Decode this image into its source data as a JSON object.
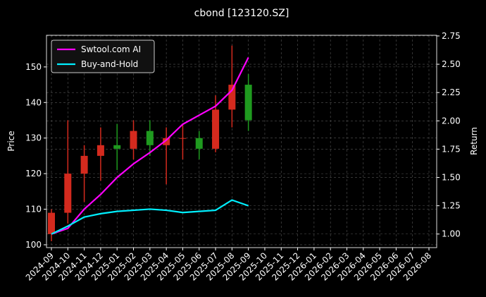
{
  "chart_data": {
    "type": "candlestick",
    "title": "cbond [123120.SZ]",
    "y_label": "Price",
    "y2_label": "Return",
    "xticks": [
      "2024-09",
      "2024-10",
      "2024-11",
      "2024-12",
      "2025-01",
      "2025-02",
      "2025-03",
      "2025-04",
      "2025-05",
      "2025-06",
      "2025-07",
      "2025-08",
      "2025-09",
      "2025-10",
      "2025-11",
      "2025-12",
      "2026-01",
      "2026-02",
      "2026-03",
      "2026-04",
      "2026-05",
      "2026-06",
      "2026-07",
      "2026-08"
    ],
    "x": [
      "2024-09",
      "2024-10",
      "2024-11",
      "2024-12",
      "2025-01",
      "2025-02",
      "2025-03",
      "2025-04",
      "2025-05",
      "2025-06",
      "2025-07",
      "2025-08",
      "2025-09"
    ],
    "open": [
      103,
      109,
      120,
      125,
      128,
      127,
      132,
      128,
      130,
      130,
      127,
      138,
      145
    ],
    "high": [
      110,
      135,
      128,
      133,
      134,
      135,
      135,
      133,
      134,
      132,
      142,
      156,
      148
    ],
    "low": [
      101,
      106,
      112,
      118,
      121,
      124,
      125,
      117,
      124,
      124,
      126,
      133,
      132
    ],
    "close": [
      109,
      120,
      125,
      128,
      127,
      132,
      128,
      130,
      130,
      127,
      138,
      145,
      135
    ],
    "up_color": "#d42a1e",
    "down_color": "#1f9a1f",
    "ylim": [
      99.2,
      158.9
    ],
    "yticks": [
      100,
      110,
      120,
      130,
      140,
      150
    ],
    "y2lim": [
      0.88,
      2.756
    ],
    "y2ticks": [
      {
        "value": 1.0,
        "label": "1.00"
      },
      {
        "value": 1.25,
        "label": "1.25"
      },
      {
        "value": 1.5,
        "label": "1.50"
      },
      {
        "value": 1.75,
        "label": "1.75"
      },
      {
        "value": 2.0,
        "label": "2.00"
      },
      {
        "value": 2.25,
        "label": "2.25"
      },
      {
        "value": 2.5,
        "label": "2.50"
      },
      {
        "value": 2.75,
        "label": "2.75"
      }
    ],
    "series": [
      {
        "name": "Swtool.com AI",
        "color": "#ff00ff",
        "axis": "y2",
        "values": [
          1.0,
          1.05,
          1.22,
          1.35,
          1.5,
          1.62,
          1.72,
          1.83,
          1.97,
          2.05,
          2.13,
          2.27,
          2.56
        ]
      },
      {
        "name": "Buy-and-Hold",
        "color": "#00f0ff",
        "axis": "y2",
        "values": [
          1.0,
          1.07,
          1.15,
          1.18,
          1.2,
          1.21,
          1.22,
          1.21,
          1.19,
          1.2,
          1.21,
          1.3,
          1.25
        ]
      }
    ],
    "grid": true,
    "legend": "upper left"
  }
}
